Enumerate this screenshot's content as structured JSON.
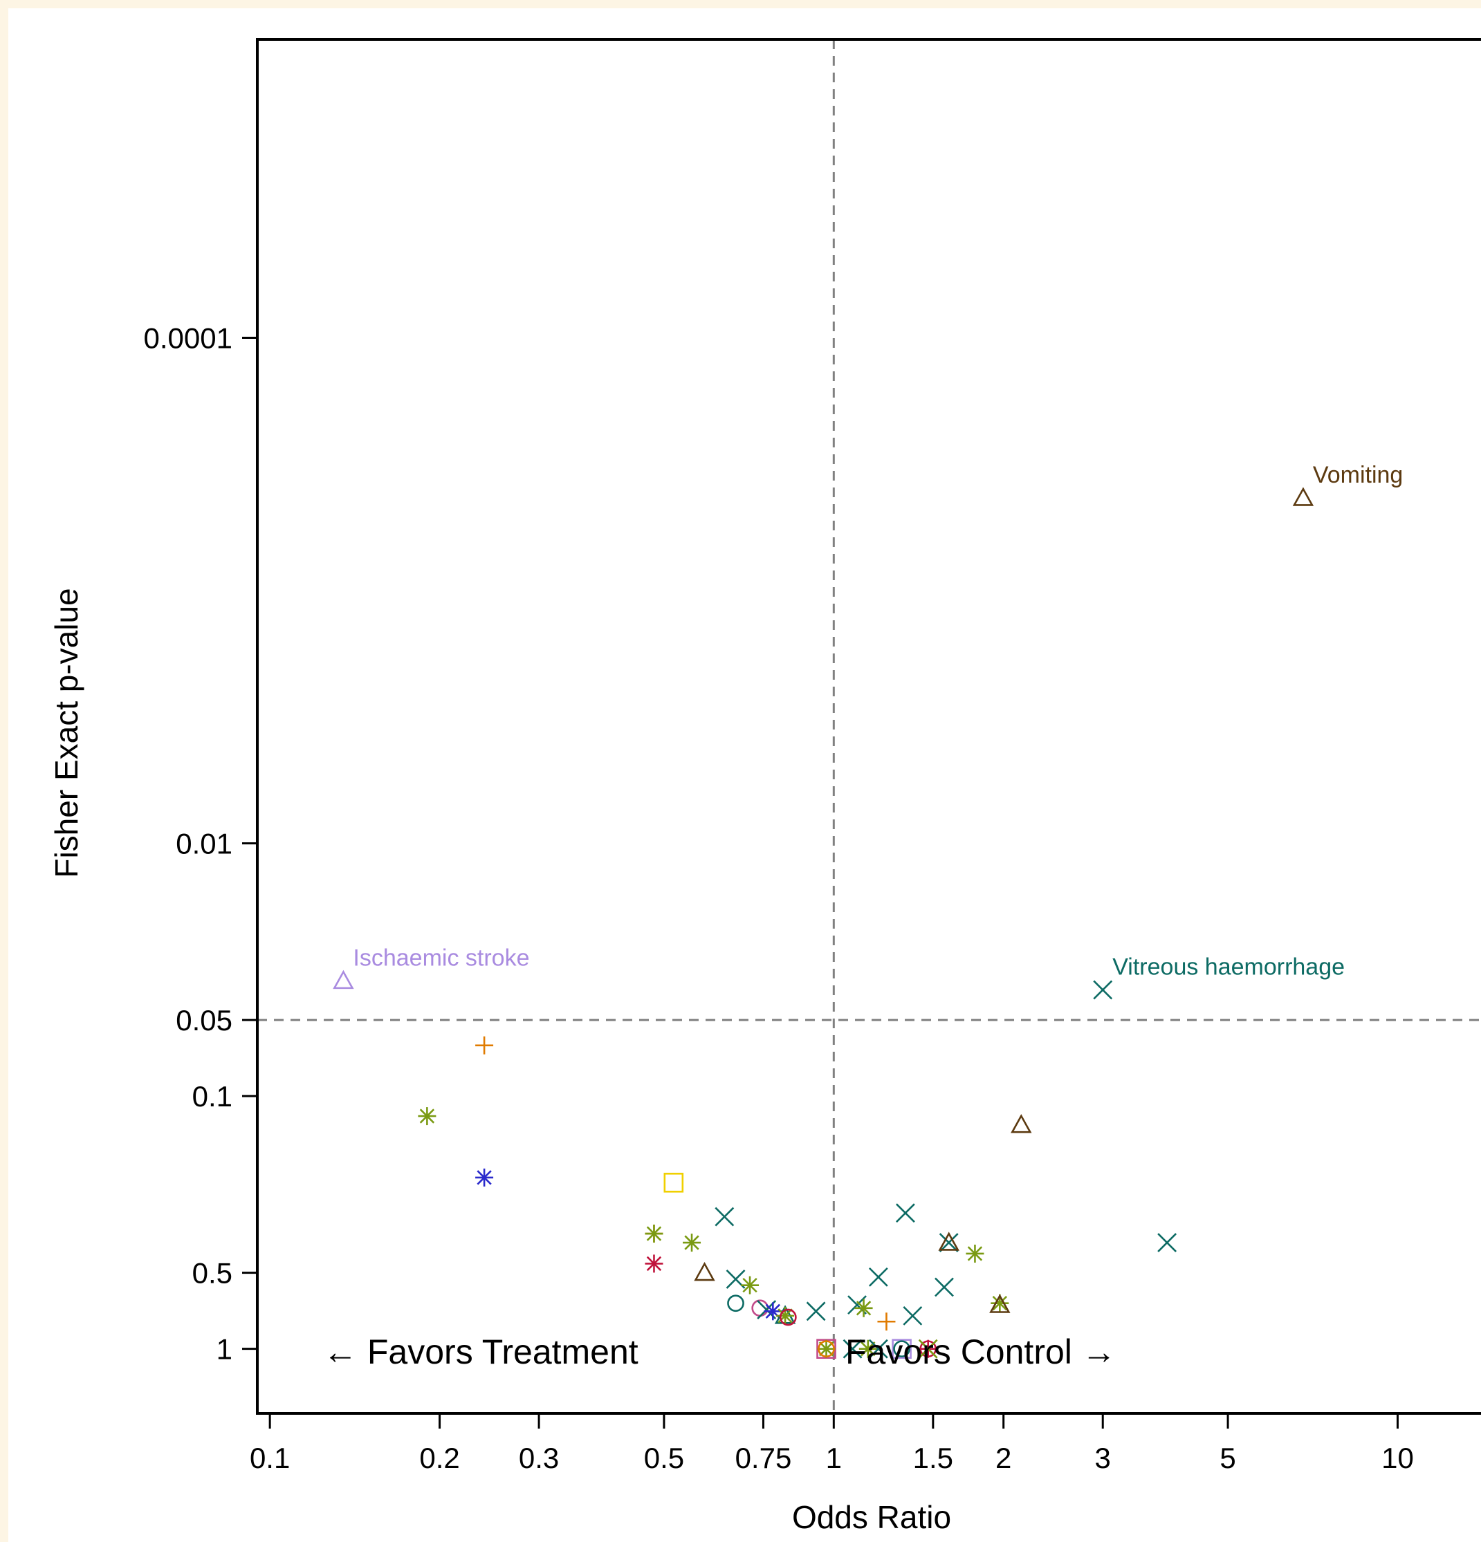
{
  "chart_data": {
    "type": "scatter",
    "title": "",
    "xlabel": "Odds Ratio",
    "ylabel": "Fisher Exact p-value",
    "x_scale": "log",
    "y_scale": "log-reversed",
    "xlim": [
      0.095,
      14.5
    ],
    "ylim": [
      1.8,
      6.6e-06
    ],
    "x_ticks": [
      {
        "value": 0.1,
        "label": "0.1"
      },
      {
        "value": 0.2,
        "label": "0.2"
      },
      {
        "value": 0.3,
        "label": "0.3"
      },
      {
        "value": 0.5,
        "label": "0.5"
      },
      {
        "value": 0.75,
        "label": "0.75"
      },
      {
        "value": 1,
        "label": "1"
      },
      {
        "value": 1.5,
        "label": "1.5"
      },
      {
        "value": 2,
        "label": "2"
      },
      {
        "value": 3,
        "label": "3"
      },
      {
        "value": 5,
        "label": "5"
      },
      {
        "value": 10,
        "label": "10"
      }
    ],
    "y_ticks": [
      {
        "value": 0.0001,
        "label": "0.0001"
      },
      {
        "value": 0.01,
        "label": "0.01"
      },
      {
        "value": 0.05,
        "label": "0.05"
      },
      {
        "value": 0.1,
        "label": "0.1"
      },
      {
        "value": 0.5,
        "label": "0.5"
      },
      {
        "value": 1,
        "label": "1"
      }
    ],
    "reference_lines": {
      "x": 1,
      "y": 0.05
    },
    "grid": false,
    "legend": "none",
    "annotations": [
      {
        "text": "Vomiting",
        "x": 6.8,
        "y": 0.00043,
        "color": "#5c3a10"
      },
      {
        "text": "Ischaemic stroke",
        "x": 0.135,
        "y": 0.035,
        "color": "#a98be0"
      },
      {
        "text": "Vitreous haemorrhage",
        "x": 3.0,
        "y": 0.038,
        "color": "#0d6b64"
      }
    ],
    "region_labels": {
      "left": "← Favors Treatment",
      "right": "Favors Control →"
    },
    "points": [
      {
        "x": 6.8,
        "y": 0.00043,
        "marker": "triangle",
        "color": "#5c3a10"
      },
      {
        "x": 0.135,
        "y": 0.035,
        "marker": "triangle",
        "color": "#a98be0"
      },
      {
        "x": 3.0,
        "y": 0.038,
        "marker": "x",
        "color": "#0d6b64"
      },
      {
        "x": 0.24,
        "y": 0.063,
        "marker": "plus",
        "color": "#e07b00"
      },
      {
        "x": 0.19,
        "y": 0.12,
        "marker": "star",
        "color": "#7a9a12"
      },
      {
        "x": 2.15,
        "y": 0.13,
        "marker": "triangle",
        "color": "#5c3a10"
      },
      {
        "x": 0.24,
        "y": 0.21,
        "marker": "star",
        "color": "#2a2acc"
      },
      {
        "x": 0.52,
        "y": 0.22,
        "marker": "square",
        "color": "#f0d000"
      },
      {
        "x": 0.64,
        "y": 0.3,
        "marker": "x",
        "color": "#0d6b64"
      },
      {
        "x": 1.34,
        "y": 0.29,
        "marker": "x",
        "color": "#0d6b64"
      },
      {
        "x": 0.48,
        "y": 0.35,
        "marker": "plus",
        "color": "#e07b00"
      },
      {
        "x": 0.48,
        "y": 0.35,
        "marker": "star",
        "color": "#7a9a12"
      },
      {
        "x": 0.56,
        "y": 0.38,
        "marker": "star",
        "color": "#7a9a12"
      },
      {
        "x": 1.6,
        "y": 0.38,
        "marker": "x",
        "color": "#0d6b64"
      },
      {
        "x": 1.6,
        "y": 0.38,
        "marker": "triangle",
        "color": "#5c3a10"
      },
      {
        "x": 3.9,
        "y": 0.38,
        "marker": "x",
        "color": "#0d6b64"
      },
      {
        "x": 1.78,
        "y": 0.42,
        "marker": "star",
        "color": "#7a9a12"
      },
      {
        "x": 0.48,
        "y": 0.46,
        "marker": "star",
        "color": "#c0143c"
      },
      {
        "x": 0.59,
        "y": 0.5,
        "marker": "triangle",
        "color": "#5c3a10"
      },
      {
        "x": 0.67,
        "y": 0.53,
        "marker": "x",
        "color": "#0d6b64"
      },
      {
        "x": 1.2,
        "y": 0.52,
        "marker": "x",
        "color": "#0d6b64"
      },
      {
        "x": 0.71,
        "y": 0.56,
        "marker": "star",
        "color": "#7a9a12"
      },
      {
        "x": 1.57,
        "y": 0.57,
        "marker": "x",
        "color": "#0d6b64"
      },
      {
        "x": 0.67,
        "y": 0.66,
        "marker": "circle",
        "color": "#0d6b64"
      },
      {
        "x": 1.97,
        "y": 0.66,
        "marker": "star",
        "color": "#7a9a12"
      },
      {
        "x": 1.97,
        "y": 0.67,
        "marker": "triangle",
        "color": "#5c3a10"
      },
      {
        "x": 1.1,
        "y": 0.67,
        "marker": "x",
        "color": "#0d6b64"
      },
      {
        "x": 1.13,
        "y": 0.69,
        "marker": "star",
        "color": "#7a9a12"
      },
      {
        "x": 0.74,
        "y": 0.69,
        "marker": "circle",
        "color": "#c24a8a"
      },
      {
        "x": 0.76,
        "y": 0.7,
        "marker": "x",
        "color": "#0d6b64"
      },
      {
        "x": 0.78,
        "y": 0.71,
        "marker": "star",
        "color": "#2a2acc"
      },
      {
        "x": 0.82,
        "y": 0.74,
        "marker": "triangle",
        "color": "#0d6b64"
      },
      {
        "x": 0.82,
        "y": 0.74,
        "marker": "star",
        "color": "#7a9a12"
      },
      {
        "x": 0.83,
        "y": 0.75,
        "marker": "circle",
        "color": "#c0143c"
      },
      {
        "x": 0.93,
        "y": 0.71,
        "marker": "x",
        "color": "#0d6b64"
      },
      {
        "x": 1.38,
        "y": 0.74,
        "marker": "x",
        "color": "#0d6b64"
      },
      {
        "x": 1.24,
        "y": 0.78,
        "marker": "plus",
        "color": "#e07b00"
      },
      {
        "x": 0.97,
        "y": 1,
        "marker": "square",
        "color": "#c24a8a"
      },
      {
        "x": 0.97,
        "y": 1,
        "marker": "star",
        "color": "#7a9a12"
      },
      {
        "x": 0.97,
        "y": 1,
        "marker": "circle",
        "color": "#e07b00"
      },
      {
        "x": 1.08,
        "y": 1,
        "marker": "x",
        "color": "#0d6b64"
      },
      {
        "x": 1.15,
        "y": 1,
        "marker": "star",
        "color": "#7a9a12"
      },
      {
        "x": 1.2,
        "y": 1,
        "marker": "x",
        "color": "#0d6b64"
      },
      {
        "x": 1.32,
        "y": 1,
        "marker": "square",
        "color": "#a98be0"
      },
      {
        "x": 1.32,
        "y": 1,
        "marker": "circle",
        "color": "#0d6b64"
      },
      {
        "x": 1.47,
        "y": 1,
        "marker": "circle",
        "color": "#c0143c"
      },
      {
        "x": 1.47,
        "y": 1,
        "marker": "star",
        "color": "#c0143c"
      },
      {
        "x": 1.47,
        "y": 1,
        "marker": "x",
        "color": "#7a9a12"
      }
    ]
  }
}
